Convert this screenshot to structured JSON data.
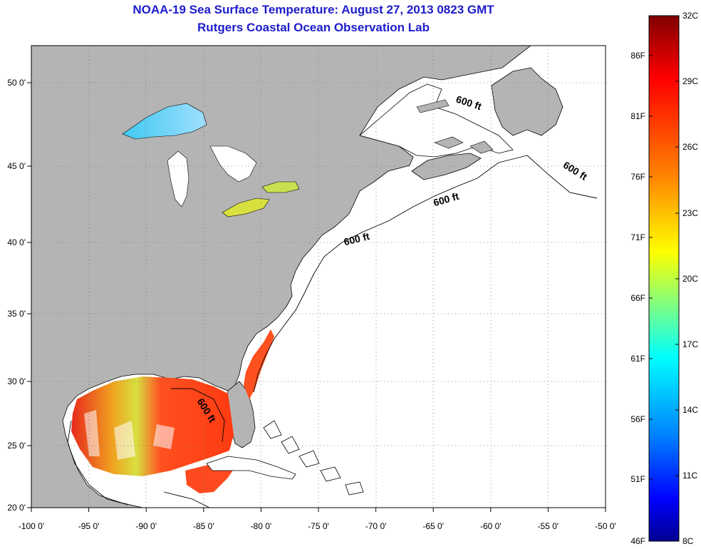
{
  "title": {
    "line1": "NOAA-19 Sea Surface Temperature:  August 27, 2013 0823 GMT",
    "line2": "Rutgers Coastal Ocean Observation Lab"
  },
  "map": {
    "lon_range": [
      -100,
      -50
    ],
    "lat_range": [
      20,
      52.3
    ],
    "lon_ticks": [
      "-100 0'",
      "-95 0'",
      "-90 0'",
      "-85 0'",
      "-80 0'",
      "-75 0'",
      "-70 0'",
      "-65 0'",
      "-60 0'",
      "-55 0'",
      "-50 0'"
    ],
    "lat_ticks": [
      {
        "lat": 50,
        "label": "50 0'"
      },
      {
        "lat": 45,
        "label": "45 0'"
      },
      {
        "lat": 40,
        "label": "40 0'"
      },
      {
        "lat": 35,
        "label": "35 0'"
      },
      {
        "lat": 30,
        "label": "30 0'"
      },
      {
        "lat": 25,
        "label": "25 0'"
      },
      {
        "lat": 20,
        "label": "20 0'"
      }
    ],
    "grid": "dotted",
    "land_color": "#b4b4b4",
    "ocean_color": "#ffffff",
    "contour_labels": [
      {
        "text": "600 ft",
        "lon": -62.0,
        "lat": 48.6,
        "angle": 18
      },
      {
        "text": "600 ft",
        "lon": -52.8,
        "lat": 44.5,
        "angle": 32
      },
      {
        "text": "600 ft",
        "lon": -63.8,
        "lat": 42.6,
        "angle": -16
      },
      {
        "text": "600 ft",
        "lon": -71.6,
        "lat": 40.0,
        "angle": -14
      },
      {
        "text": "600 ft",
        "lon": -85.0,
        "lat": 27.6,
        "angle": 58
      }
    ]
  },
  "colorbar": {
    "left_labels": [
      "86F",
      "81F",
      "76F",
      "71F",
      "66F",
      "61F",
      "56F",
      "51F",
      "46F"
    ],
    "right_labels": [
      "32C",
      "29C",
      "26C",
      "23C",
      "20C",
      "17C",
      "14C",
      "11C",
      "8C"
    ],
    "colors": [
      "#800000",
      "#ff0000",
      "#ff8000",
      "#ffff00",
      "#80ff80",
      "#00ffff",
      "#0080ff",
      "#0000ff",
      "#000090"
    ]
  }
}
